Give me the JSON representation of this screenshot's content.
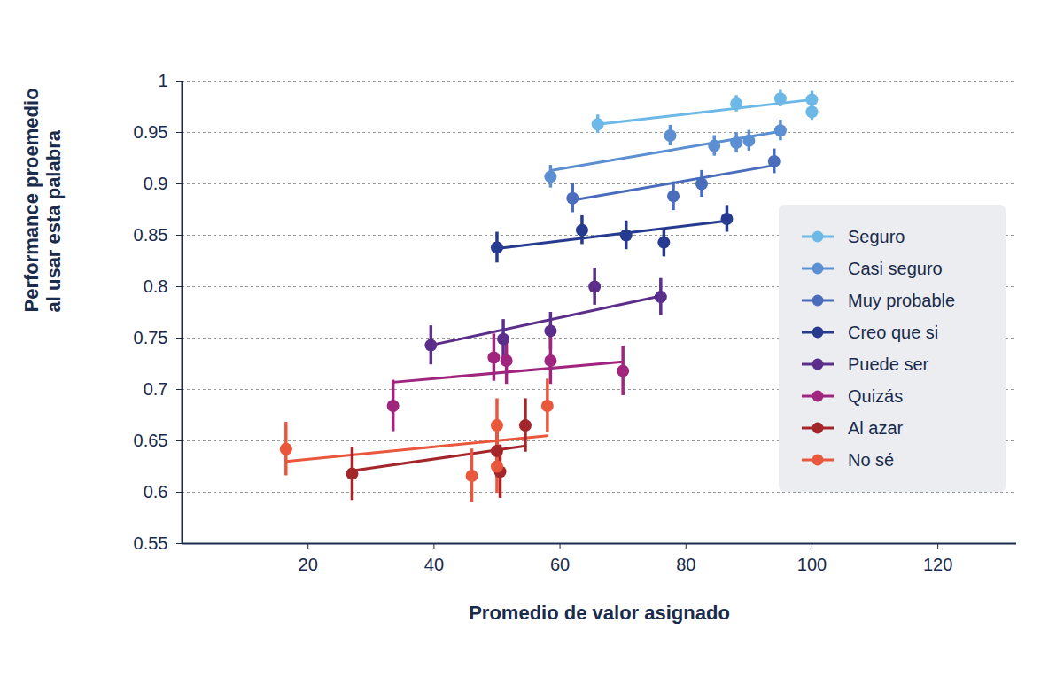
{
  "chart_data": {
    "type": "scatter",
    "x_label": "Promedio de valor asignado",
    "y_label": "Performance proemedio\nal usar esta palabra",
    "xlim": [
      0,
      132.5
    ],
    "xticks": [
      20,
      40,
      60,
      80,
      100,
      120
    ],
    "ylim": [
      0.55,
      1
    ],
    "yticks": [
      0.55,
      0.6,
      0.65,
      0.7,
      0.75,
      0.8,
      0.85,
      0.9,
      0.95,
      1
    ],
    "grid": true,
    "legend": "right",
    "marker": "circle",
    "series": [
      {
        "name": "Seguro",
        "color": "#6cb8e6",
        "x": [
          66,
          88,
          95,
          100,
          100
        ],
        "values": [
          0.958,
          0.978,
          0.983,
          0.982,
          0.97
        ],
        "errors": [
          0.009,
          0.008,
          0.008,
          0.008,
          0.008
        ],
        "fit": {
          "x": [
            66,
            100
          ],
          "values": [
            0.958,
            0.982
          ]
        }
      },
      {
        "name": "Casi seguro",
        "color": "#5b8fd2",
        "x": [
          58.5,
          77.5,
          84.5,
          88,
          90,
          95
        ],
        "values": [
          0.907,
          0.947,
          0.937,
          0.94,
          0.942,
          0.952
        ],
        "errors": [
          0.011,
          0.01,
          0.01,
          0.01,
          0.01,
          0.01
        ],
        "fit": {
          "x": [
            58.5,
            95
          ],
          "values": [
            0.913,
            0.951
          ]
        }
      },
      {
        "name": "Muy probable",
        "color": "#4a6cbc",
        "x": [
          62,
          78,
          82.5,
          94
        ],
        "values": [
          0.886,
          0.888,
          0.9,
          0.922
        ],
        "errors": [
          0.014,
          0.014,
          0.013,
          0.012
        ],
        "fit": {
          "x": [
            62,
            94
          ],
          "values": [
            0.884,
            0.918
          ]
        }
      },
      {
        "name": "Creo que si",
        "color": "#263a8f",
        "x": [
          50,
          63.5,
          70.5,
          76.5,
          86.5
        ],
        "values": [
          0.838,
          0.855,
          0.85,
          0.843,
          0.866
        ],
        "errors": [
          0.015,
          0.014,
          0.014,
          0.014,
          0.013
        ],
        "fit": {
          "x": [
            50,
            86.5
          ],
          "values": [
            0.837,
            0.864
          ]
        }
      },
      {
        "name": "Puede ser",
        "color": "#5a2e8a",
        "x": [
          39.5,
          51,
          58.5,
          65.5,
          76
        ],
        "values": [
          0.743,
          0.749,
          0.757,
          0.8,
          0.79
        ],
        "errors": [
          0.019,
          0.019,
          0.018,
          0.018,
          0.018
        ],
        "fit": {
          "x": [
            39.5,
            76
          ],
          "values": [
            0.743,
            0.791
          ]
        }
      },
      {
        "name": "Quizás",
        "color": "#a0257f",
        "x": [
          33.5,
          49.5,
          51.5,
          58.5,
          70
        ],
        "values": [
          0.684,
          0.731,
          0.728,
          0.728,
          0.718
        ],
        "errors": [
          0.025,
          0.023,
          0.023,
          0.023,
          0.024
        ],
        "fit": {
          "x": [
            33.5,
            70
          ],
          "values": [
            0.707,
            0.727
          ]
        }
      },
      {
        "name": "Al azar",
        "color": "#a3262b",
        "x": [
          27,
          50,
          50.5,
          54.5
        ],
        "values": [
          0.618,
          0.64,
          0.62,
          0.665
        ],
        "errors": [
          0.026,
          0.026,
          0.026,
          0.026
        ],
        "fit": {
          "x": [
            27,
            54.5
          ],
          "values": [
            0.621,
            0.645
          ]
        }
      },
      {
        "name": "No sé",
        "color": "#e9573d",
        "x": [
          16.5,
          46,
          50,
          50,
          58
        ],
        "values": [
          0.642,
          0.616,
          0.665,
          0.625,
          0.684
        ],
        "errors": [
          0.026,
          0.026,
          0.026,
          0.026,
          0.026
        ],
        "fit": {
          "x": [
            16.5,
            58
          ],
          "values": [
            0.63,
            0.655
          ]
        }
      }
    ]
  }
}
